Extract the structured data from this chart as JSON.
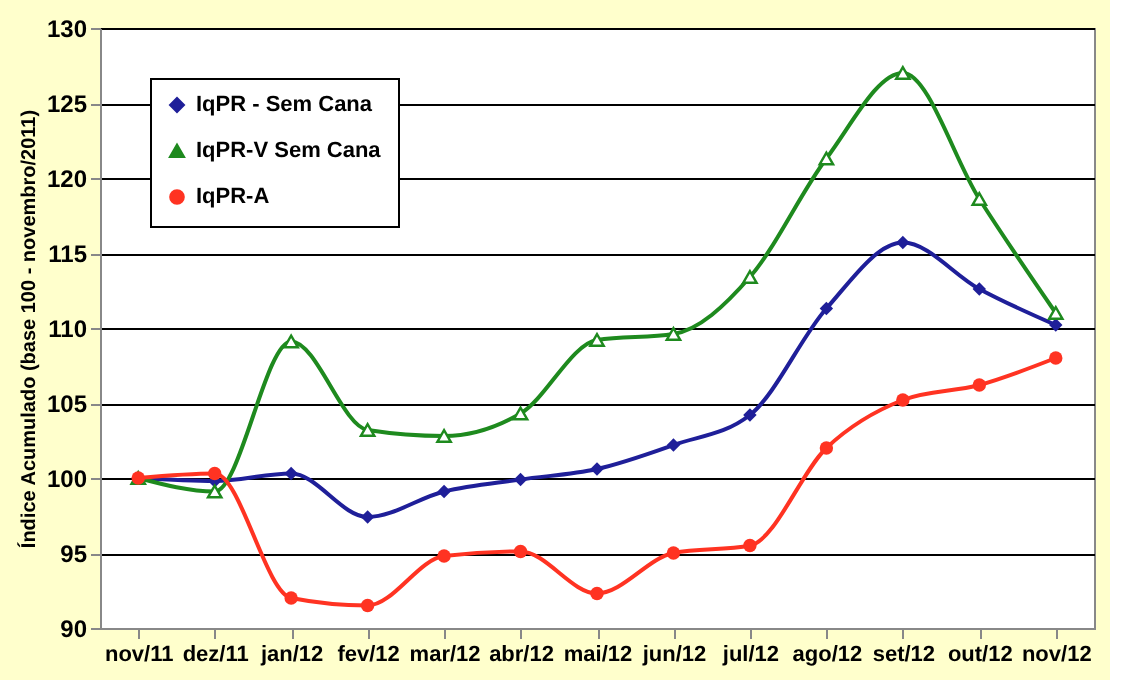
{
  "chart_data": {
    "type": "line",
    "ylabel": "Índice Acumulado (base 100 - novembro/2011)",
    "categories": [
      "nov/11",
      "dez/11",
      "jan/12",
      "fev/12",
      "mar/12",
      "abr/12",
      "mai/12",
      "jun/12",
      "jul/12",
      "ago/12",
      "set/12",
      "out/12",
      "nov/12"
    ],
    "series": [
      {
        "name": "IqPR - Sem Cana",
        "color": "#1f1f99",
        "marker": "diamond",
        "values": [
          100,
          99.8,
          100.3,
          97.4,
          99.1,
          99.9,
          100.6,
          102.2,
          104.2,
          111.3,
          115.7,
          112.6,
          110.2
        ]
      },
      {
        "name": "IqPR-V Sem Cana",
        "color": "#1e8a1e",
        "marker": "triangle",
        "values": [
          100,
          99.1,
          109.1,
          103.2,
          102.8,
          104.3,
          109.2,
          109.6,
          113.4,
          121.3,
          127,
          118.6,
          111
        ]
      },
      {
        "name": "IqPR-A",
        "color": "#ff3322",
        "marker": "circle",
        "values": [
          100,
          100.3,
          92,
          91.5,
          94.8,
          95.1,
          92.3,
          95,
          95.5,
          102,
          105.2,
          106.2,
          108
        ]
      }
    ],
    "ylim": [
      90,
      130
    ],
    "yticks": [
      90,
      95,
      100,
      105,
      110,
      115,
      120,
      125,
      130
    ],
    "grid": "y",
    "legend": "top left"
  }
}
